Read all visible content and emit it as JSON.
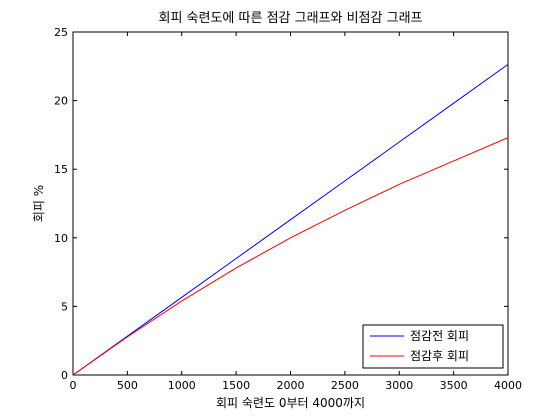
{
  "chart_data": {
    "type": "line",
    "title": "회피 숙련도에 따른 점감 그래프와 비점감 그래프",
    "xlabel": "회피 숙련도 0부터 4000까지",
    "ylabel": "회피 %",
    "xlim": [
      0,
      4000
    ],
    "ylim": [
      0,
      25
    ],
    "xticks": [
      0,
      500,
      1000,
      1500,
      2000,
      2500,
      3000,
      3500,
      4000
    ],
    "yticks": [
      0,
      5,
      10,
      15,
      20,
      25
    ],
    "grid": false,
    "legend_position": "bottom-right",
    "x": [
      0,
      500,
      1000,
      1500,
      2000,
      2500,
      3000,
      3500,
      4000
    ],
    "series": [
      {
        "name": "점감전 회피",
        "color": "#0000ff",
        "values": [
          0,
          2.83,
          5.66,
          8.49,
          11.32,
          14.15,
          16.98,
          19.81,
          22.64
        ]
      },
      {
        "name": "점감후 회피",
        "color": "#ff0000",
        "values": [
          0,
          2.78,
          5.4,
          7.8,
          10.0,
          12.0,
          13.9,
          15.6,
          17.3
        ]
      }
    ]
  }
}
